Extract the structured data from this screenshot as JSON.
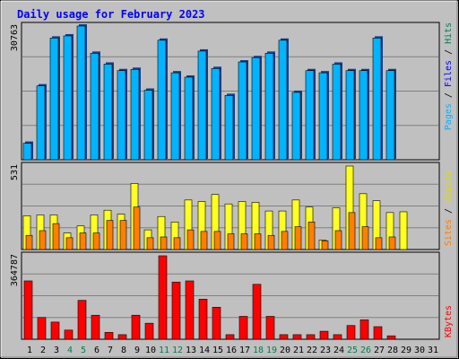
{
  "chart_data": {
    "type": "bar",
    "title": "Daily usage for February 2023",
    "x": [
      "1",
      "2",
      "3",
      "4",
      "5",
      "6",
      "7",
      "8",
      "9",
      "10",
      "11",
      "12",
      "13",
      "14",
      "15",
      "16",
      "17",
      "18",
      "19",
      "20",
      "21",
      "22",
      "23",
      "24",
      "25",
      "26",
      "27",
      "28",
      "29",
      "30",
      "31"
    ],
    "weekend_days": [
      "4",
      "5",
      "11",
      "12",
      "18",
      "19",
      "25",
      "26"
    ],
    "panels": [
      {
        "id": "hits",
        "ymax_label": "30763",
        "ylim": [
          0,
          30763
        ],
        "right_label": [
          "Pages",
          "Files",
          "Hits"
        ],
        "series": [
          {
            "name": "Hits",
            "color": "#00b4ff",
            "values": [
              3800,
              17000,
              28000,
              28500,
              30763,
              24500,
              22000,
              20500,
              20800,
              16000,
              27500,
              20000,
              19000,
              25000,
              21000,
              14800,
              22500,
              23500,
              24500,
              27500,
              15500,
              20500,
              20000,
              22000,
              20500,
              20500,
              28000,
              20500,
              0,
              0,
              0
            ]
          }
        ]
      },
      {
        "id": "visits",
        "ymax_label": "531",
        "ylim": [
          0,
          531
        ],
        "right_label": [
          "Sites",
          "Visits"
        ],
        "series": [
          {
            "name": "Visits",
            "color": "#ffff22",
            "values": [
              215,
              220,
              220,
              105,
              150,
              220,
              250,
              225,
              420,
              125,
              210,
              175,
              315,
              305,
              350,
              290,
              305,
              300,
              245,
              245,
              315,
              270,
              60,
              265,
              531,
              355,
              310,
              235,
              240,
              0,
              0
            ]
          },
          {
            "name": "Sites",
            "color": "#ff7f00",
            "values": [
              90,
              120,
              165,
              75,
              105,
              105,
              185,
              185,
              270,
              75,
              80,
              75,
              125,
              115,
              115,
              100,
              100,
              100,
              90,
              115,
              145,
              175,
              55,
              120,
              235,
              145,
              75,
              80,
              0,
              0,
              0
            ]
          }
        ]
      },
      {
        "id": "kbytes",
        "ymax_label": "364787",
        "ylim": [
          0,
          364787
        ],
        "right_label": [
          "KBytes"
        ],
        "series": [
          {
            "name": "KBytes",
            "color": "#ff0000",
            "values": [
              255000,
              95000,
              75000,
              40000,
              170000,
              105000,
              30000,
              20000,
              105000,
              70000,
              364787,
              250000,
              255000,
              175000,
              140000,
              20000,
              100000,
              240000,
              100000,
              20000,
              20000,
              20000,
              35000,
              20000,
              60000,
              85000,
              55000,
              15000,
              0,
              0,
              0
            ]
          }
        ]
      }
    ],
    "colors": {
      "background": "#c0c0c0",
      "plot_bg": "#c0c0c0",
      "grid": "#808080",
      "title": "#0000ff",
      "pages": "#00b4ff",
      "files": "#0000ff",
      "hits": "#007f4a",
      "weekday": "#000000",
      "weekend": "#007f4a"
    }
  }
}
